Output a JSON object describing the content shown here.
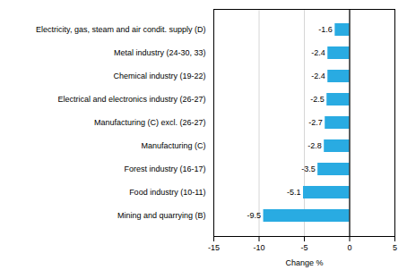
{
  "chart_data": {
    "type": "bar",
    "orientation": "horizontal",
    "categories": [
      "Mining and quarrying (B)",
      "Food industry (10-11)",
      "Forest industry (16-17)",
      "Manufacturing (C)",
      "Manufacturing (C) excl. (26-27)",
      "Electrical and electronics industry (26-27)",
      "Chemical industry (19-22)",
      "Metal industry (24-30, 33)",
      "Electricity, gas, steam and air condit. supply (D)"
    ],
    "values": [
      -9.5,
      -5.1,
      -3.5,
      -2.8,
      -2.7,
      -2.5,
      -2.4,
      -2.4,
      -1.6
    ],
    "color": "#29ABE2",
    "xlabel": "Change %",
    "xlim": [
      -15,
      5
    ],
    "xticks": [
      -15,
      -10,
      -5,
      0,
      5
    ],
    "grid": true,
    "data_labels": true
  }
}
